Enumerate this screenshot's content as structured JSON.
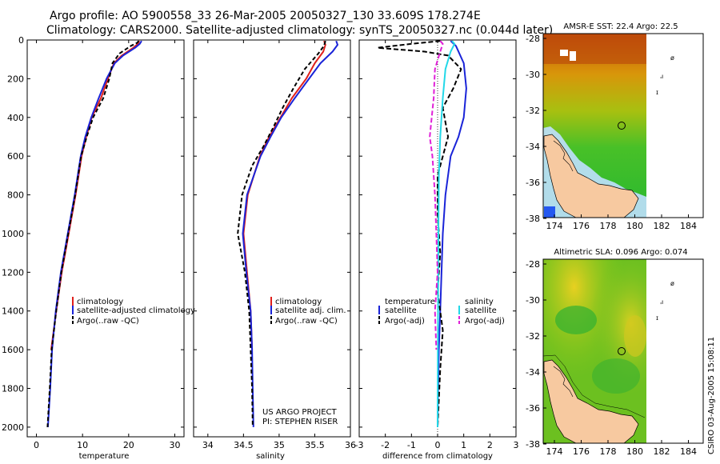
{
  "header": {
    "line1": "Argo profile: AO 5900558_33 26-Mar-2005 20050327_130 33.609S 178.274E",
    "line2": "Climatology: CARS2000. Satellite-adjusted climatology: synTS_20050327.nc (0.044d later)"
  },
  "credit": {
    "line1": "US ARGO PROJECT",
    "line2": "PI: STEPHEN RISER"
  },
  "timestamp": "CSIRO 03-Aug-2005 15:08:11",
  "colors": {
    "climatology": "#e0201c",
    "satellite": "#1a24d8",
    "argo": "#000000",
    "salinity_sat": "#22d8e8",
    "salinity_argo": "#e020d8"
  },
  "chart_data": [
    {
      "type": "line",
      "xlabel": "temperature",
      "ylabel": "",
      "xlim": [
        -2,
        32
      ],
      "ylim": [
        2050,
        0
      ],
      "x_ticks": [
        0,
        10,
        20,
        30
      ],
      "y_ticks": [
        0,
        200,
        400,
        600,
        800,
        1000,
        1200,
        1400,
        1600,
        1800,
        2000
      ],
      "legend": [
        "climatology",
        "satellite-adjusted climatology",
        "Argo(..raw -QC)"
      ],
      "series": [
        {
          "name": "climatology",
          "values": [
            [
              22.3,
              5
            ],
            [
              22.0,
              20
            ],
            [
              21.0,
              40
            ],
            [
              18.5,
              80
            ],
            [
              16.8,
              120
            ],
            [
              15.5,
              200
            ],
            [
              14.0,
              300
            ],
            [
              12.0,
              400
            ],
            [
              10.8,
              500
            ],
            [
              9.8,
              600
            ],
            [
              8.5,
              800
            ],
            [
              7.0,
              1000
            ],
            [
              5.5,
              1200
            ],
            [
              4.3,
              1400
            ],
            [
              3.2,
              1600
            ]
          ]
        },
        {
          "name": "satellite-adjusted climatology",
          "values": [
            [
              22.8,
              5
            ],
            [
              22.4,
              20
            ],
            [
              21.4,
              40
            ],
            [
              18.8,
              80
            ],
            [
              17.0,
              120
            ],
            [
              15.2,
              200
            ],
            [
              13.5,
              300
            ],
            [
              11.9,
              400
            ],
            [
              10.6,
              500
            ],
            [
              9.6,
              600
            ],
            [
              8.3,
              800
            ],
            [
              6.8,
              1000
            ],
            [
              5.3,
              1200
            ],
            [
              4.2,
              1400
            ],
            [
              3.4,
              1600
            ],
            [
              3.0,
              1800
            ],
            [
              2.5,
              2000
            ]
          ]
        },
        {
          "name": "Argo(..raw -QC)",
          "values": [
            [
              22.2,
              5
            ],
            [
              21.8,
              15
            ],
            [
              20.5,
              30
            ],
            [
              18.0,
              70
            ],
            [
              16.5,
              120
            ],
            [
              15.8,
              200
            ],
            [
              14.5,
              300
            ],
            [
              12.3,
              400
            ],
            [
              10.9,
              500
            ],
            [
              9.7,
              600
            ],
            [
              8.4,
              800
            ],
            [
              6.9,
              1000
            ],
            [
              5.4,
              1200
            ],
            [
              4.3,
              1400
            ],
            [
              3.3,
              1600
            ],
            [
              2.9,
              1800
            ],
            [
              2.4,
              2000
            ]
          ]
        }
      ]
    },
    {
      "type": "line",
      "xlabel": "salinity",
      "ylabel": "",
      "xlim": [
        33.8,
        36.0
      ],
      "ylim": [
        2050,
        0
      ],
      "x_ticks": [
        34,
        34.5,
        35,
        35.5,
        36
      ],
      "legend": [
        "climatology",
        "satellite adj. clim.",
        "Argo(..raw -QC)"
      ],
      "series": [
        {
          "name": "climatology",
          "values": [
            [
              35.63,
              5
            ],
            [
              35.65,
              25
            ],
            [
              35.62,
              60
            ],
            [
              35.5,
              120
            ],
            [
              35.38,
              200
            ],
            [
              35.18,
              300
            ],
            [
              35.02,
              400
            ],
            [
              34.86,
              500
            ],
            [
              34.73,
              600
            ],
            [
              34.56,
              800
            ],
            [
              34.5,
              1000
            ],
            [
              34.55,
              1200
            ],
            [
              34.6,
              1400
            ],
            [
              34.62,
              1600
            ]
          ]
        },
        {
          "name": "satellite adj. clim.",
          "values": [
            [
              35.8,
              5
            ],
            [
              35.82,
              25
            ],
            [
              35.75,
              60
            ],
            [
              35.58,
              120
            ],
            [
              35.42,
              200
            ],
            [
              35.22,
              300
            ],
            [
              35.03,
              400
            ],
            [
              34.88,
              500
            ],
            [
              34.74,
              600
            ],
            [
              34.55,
              800
            ],
            [
              34.49,
              1000
            ],
            [
              34.54,
              1200
            ],
            [
              34.6,
              1400
            ],
            [
              34.62,
              1600
            ],
            [
              34.63,
              1800
            ],
            [
              34.64,
              2000
            ]
          ]
        },
        {
          "name": "Argo(..raw -QC)",
          "values": [
            [
              35.65,
              5
            ],
            [
              35.63,
              30
            ],
            [
              35.55,
              70
            ],
            [
              35.36,
              150
            ],
            [
              35.2,
              250
            ],
            [
              35.05,
              350
            ],
            [
              34.92,
              450
            ],
            [
              34.78,
              550
            ],
            [
              34.62,
              650
            ],
            [
              34.48,
              800
            ],
            [
              34.42,
              1000
            ],
            [
              34.52,
              1200
            ],
            [
              34.58,
              1400
            ],
            [
              34.6,
              1600
            ],
            [
              34.62,
              1800
            ],
            [
              34.63,
              2000
            ]
          ]
        }
      ]
    },
    {
      "type": "line",
      "xlabel": "difference from climatology",
      "ylabel": "",
      "xlim": [
        -3,
        3
      ],
      "ylim": [
        2050,
        0
      ],
      "x_ticks": [
        -3,
        -2,
        -1,
        0,
        1,
        2,
        3
      ],
      "legend": [
        "temperature",
        "satellite",
        "Argo(-adj)",
        "salinity",
        "satellite",
        "Argo(-adj)"
      ],
      "series": [
        {
          "name": "temperature satellite",
          "values": [
            [
              0.5,
              5
            ],
            [
              0.7,
              30
            ],
            [
              1.0,
              120
            ],
            [
              1.1,
              250
            ],
            [
              1.0,
              400
            ],
            [
              0.8,
              500
            ],
            [
              0.5,
              600
            ],
            [
              0.3,
              800
            ],
            [
              0.2,
              1000
            ],
            [
              0.15,
              1200
            ],
            [
              0.1,
              1400
            ],
            [
              0.05,
              1600
            ],
            [
              0.02,
              1800
            ],
            [
              0.0,
              2000
            ]
          ]
        },
        {
          "name": "temperature Argo(-adj)",
          "values": [
            [
              0.1,
              5
            ],
            [
              -1.0,
              20
            ],
            [
              -2.3,
              40
            ],
            [
              -0.5,
              60
            ],
            [
              0.4,
              80
            ],
            [
              0.9,
              150
            ],
            [
              0.6,
              250
            ],
            [
              0.2,
              350
            ],
            [
              0.4,
              500
            ],
            [
              0.0,
              700
            ],
            [
              0.0,
              900
            ],
            [
              0.1,
              1100
            ],
            [
              0.0,
              1300
            ],
            [
              0.2,
              1500
            ],
            [
              0.1,
              1700
            ],
            [
              0.0,
              2000
            ]
          ]
        },
        {
          "name": "salinity satellite",
          "values": [
            [
              0.55,
              5
            ],
            [
              0.65,
              20
            ],
            [
              0.5,
              60
            ],
            [
              0.3,
              150
            ],
            [
              0.2,
              300
            ],
            [
              0.1,
              500
            ],
            [
              0.05,
              700
            ],
            [
              0.03,
              1000
            ],
            [
              0.02,
              1300
            ],
            [
              0.01,
              1600
            ],
            [
              0.0,
              2000
            ]
          ]
        },
        {
          "name": "salinity Argo(-adj)",
          "values": [
            [
              0.1,
              5
            ],
            [
              0.2,
              20
            ],
            [
              0.1,
              60
            ],
            [
              -0.1,
              150
            ],
            [
              -0.15,
              300
            ],
            [
              -0.3,
              500
            ],
            [
              -0.2,
              600
            ],
            [
              -0.1,
              800
            ],
            [
              -0.05,
              1000
            ],
            [
              0.0,
              1200
            ],
            [
              -0.1,
              1400
            ],
            [
              -0.05,
              1600
            ]
          ]
        }
      ]
    }
  ],
  "maps": [
    {
      "title": "AMSR-E SST: 22.4 Argo: 22.5",
      "x_ticks": [
        "174",
        "176",
        "178",
        "180",
        "182",
        "184"
      ],
      "y_ticks": [
        "-28",
        "-30",
        "-32",
        "-34",
        "-36",
        "-38"
      ]
    },
    {
      "title": "Altimetric SLA: 0.096 Argo: 0.074",
      "x_ticks": [
        "174",
        "176",
        "178",
        "180",
        "182",
        "184"
      ],
      "y_ticks": [
        "-28",
        "-30",
        "-32",
        "-34",
        "-36",
        "-38"
      ]
    }
  ]
}
